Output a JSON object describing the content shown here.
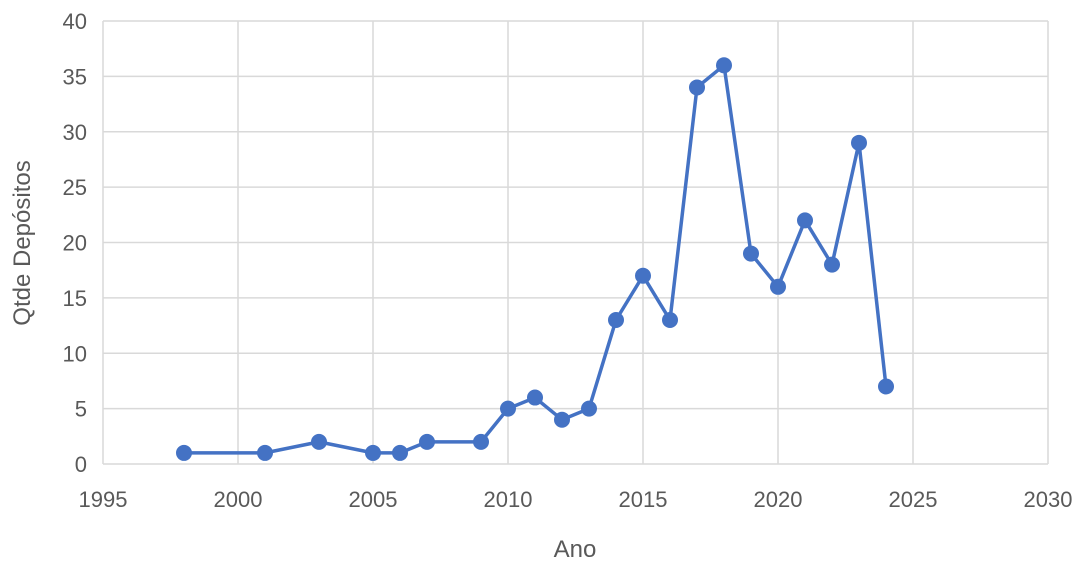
{
  "chart_data": {
    "type": "scatter",
    "xlabel": "Ano",
    "ylabel": "Qtde Depósitos",
    "xlim": [
      1995,
      2030
    ],
    "ylim": [
      0,
      40
    ],
    "x_ticks": [
      1995,
      2000,
      2005,
      2010,
      2015,
      2020,
      2025,
      2030
    ],
    "y_ticks": [
      0,
      5,
      10,
      15,
      20,
      25,
      30,
      35,
      40
    ],
    "grid": true,
    "legend": "none",
    "color": "#4472C4",
    "grid_color": "#D9D9D9",
    "series": [
      {
        "x": [
          1998,
          2001,
          2003,
          2005,
          2006,
          2007,
          2009,
          2010,
          2011,
          2012,
          2013,
          2014,
          2015,
          2016,
          2017,
          2018,
          2019,
          2020,
          2021,
          2022,
          2023,
          2024
        ],
        "y": [
          1,
          1,
          2,
          1,
          1,
          2,
          2,
          5,
          6,
          4,
          5,
          13,
          17,
          13,
          34,
          36,
          19,
          16,
          22,
          18,
          29,
          7
        ]
      }
    ]
  }
}
